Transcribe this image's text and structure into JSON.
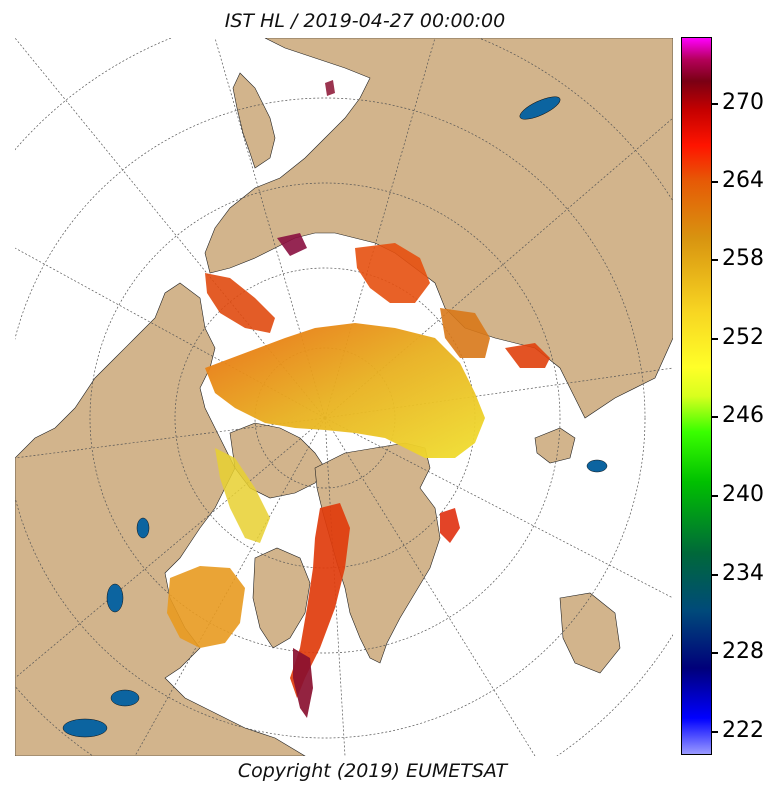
{
  "title": "IST HL / 2019-04-27 00:00:00",
  "copyright": "Copyright (2019)  EUMETSAT",
  "colorbar": {
    "ticks": [
      "222",
      "228",
      "234",
      "240",
      "246",
      "252",
      "258",
      "264",
      "270"
    ]
  },
  "colors": {
    "land": "#d2b48c",
    "open_water": "#ffffff",
    "lakes": "#0c64a0",
    "graticule": "#555555"
  },
  "map": {
    "projection": "north polar stereographic",
    "variable": "ice surface temperature"
  }
}
